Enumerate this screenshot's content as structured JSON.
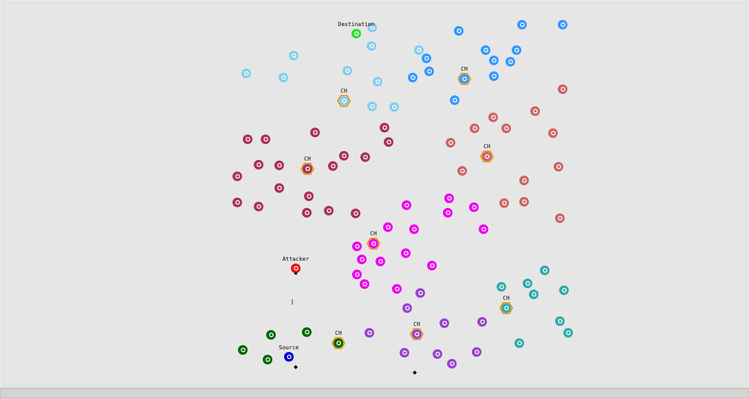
{
  "labels": {
    "destination": "Destination",
    "attacker": "Attacker",
    "source": "Source"
  },
  "cluster_heads": [
    "CH",
    "CH",
    "CH",
    "CH",
    "CH",
    "CH",
    "CH",
    "CH"
  ]
}
